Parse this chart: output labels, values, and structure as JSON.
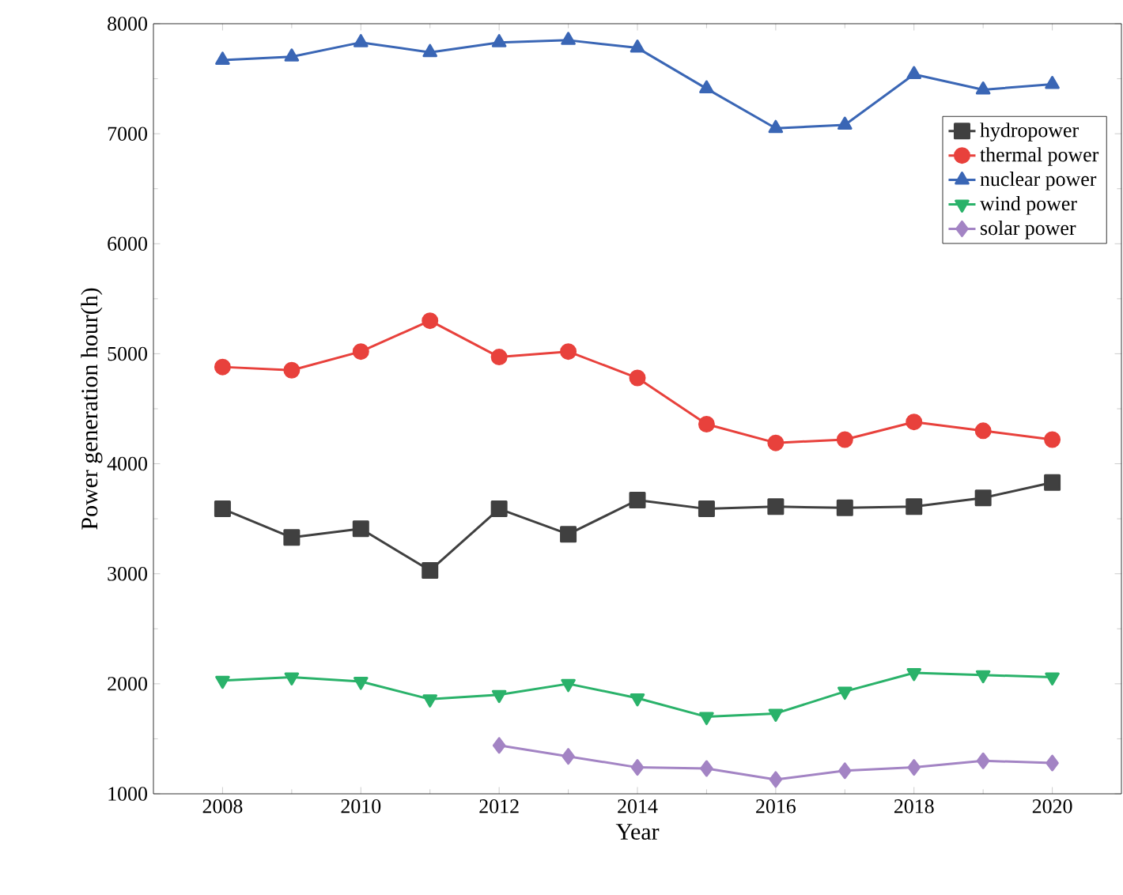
{
  "chart_data": {
    "type": "line",
    "xlabel": "Year",
    "ylabel": "Power generation hour(h)",
    "x": [
      2008,
      2009,
      2010,
      2011,
      2012,
      2013,
      2014,
      2015,
      2016,
      2017,
      2018,
      2019,
      2020
    ],
    "xlim": [
      2007,
      2021
    ],
    "xticks": [
      2008,
      2010,
      2012,
      2014,
      2016,
      2018,
      2020
    ],
    "ylim": [
      1000,
      8000
    ],
    "yticks": [
      1000,
      2000,
      3000,
      4000,
      5000,
      6000,
      7000,
      8000
    ],
    "grid": false,
    "legend": "right",
    "line_style": "solid",
    "series": [
      {
        "name": "hydropower",
        "color": "#404040",
        "marker": "square",
        "values": [
          3590,
          3330,
          3410,
          3030,
          3590,
          3360,
          3670,
          3590,
          3610,
          3600,
          3610,
          3690,
          3830
        ]
      },
      {
        "name": "thermal power",
        "color": "#e8413c",
        "marker": "circle",
        "values": [
          4880,
          4850,
          5020,
          5300,
          4970,
          5020,
          4780,
          4360,
          4190,
          4220,
          4380,
          4300,
          4220
        ]
      },
      {
        "name": "nuclear power",
        "color": "#3a66b5",
        "marker": "triangle",
        "values": [
          7670,
          7700,
          7830,
          7740,
          7830,
          7850,
          7780,
          7410,
          7050,
          7080,
          7540,
          7400,
          7450
        ]
      },
      {
        "name": "wind power",
        "color": "#2ab26a",
        "marker": "triangle down",
        "values": [
          2030,
          2060,
          2020,
          1860,
          1900,
          2000,
          1870,
          1700,
          1730,
          1930,
          2100,
          2080,
          2060
        ]
      },
      {
        "name": "solar power",
        "color": "#a384c4",
        "marker": "diamond",
        "values": [
          null,
          null,
          null,
          null,
          1440,
          1340,
          1240,
          1230,
          1130,
          1210,
          1240,
          1300,
          1280
        ]
      }
    ]
  }
}
